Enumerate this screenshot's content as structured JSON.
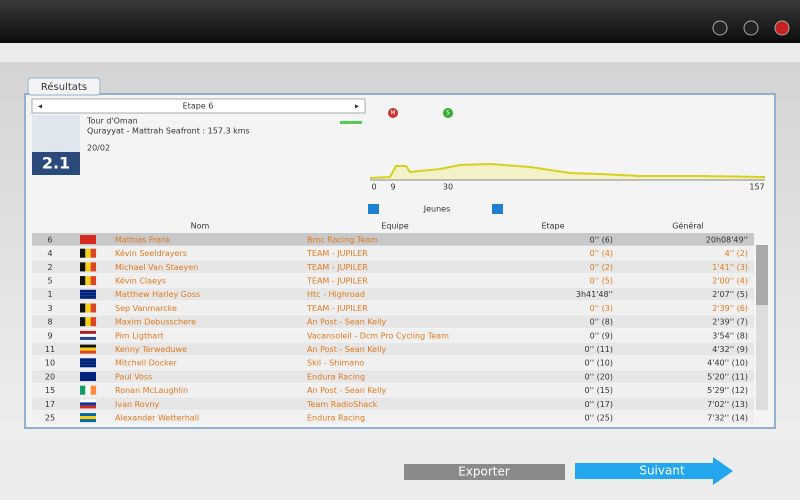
{
  "tab": "Résultats",
  "stage_selector": "Etape 6",
  "race": {
    "name": "Tour d'Oman",
    "route": "Qurayyat - Mattrah Seafront : 157.3 kms",
    "date": "20/02",
    "category": "2.1"
  },
  "profile": {
    "markers": [
      "M",
      "S"
    ],
    "km_labels": [
      "0",
      "9",
      "30",
      "157"
    ]
  },
  "classification": "Jeunes",
  "table": {
    "headers": [
      "Nom",
      "Equipe",
      "Etape",
      "Général"
    ],
    "rows": [
      [
        "6",
        "Mathias Frank",
        "Bmc Racing Team",
        "0'' (6)",
        "20h08'49''"
      ],
      [
        "4",
        "Kévin Seeldrayers",
        "TEAM - JUPILER",
        "0'' (4)",
        "4'' (2)"
      ],
      [
        "2",
        "Michael Van Staeyen",
        "TEAM - JUPILER",
        "0'' (2)",
        "1'41'' (3)"
      ],
      [
        "5",
        "Kévin Claeys",
        "TEAM - JUPILER",
        "0'' (5)",
        "2'00'' (4)"
      ],
      [
        "1",
        "Matthew Harley Goss",
        "Htc - Highroad",
        "3h41'48''",
        "2'07'' (5)"
      ],
      [
        "3",
        "Sep Vanmarcke",
        "TEAM - JUPILER",
        "0'' (3)",
        "2'39'' (6)"
      ],
      [
        "8",
        "Maxim Debusschere",
        "An Post - Sean Kelly",
        "0'' (8)",
        "2'39'' (7)"
      ],
      [
        "9",
        "Pim Ligthart",
        "Vacansoleil - Dcm Pro Cycling Team",
        "0'' (9)",
        "3'54'' (8)"
      ],
      [
        "11",
        "Kenny Terweduwe",
        "An Post - Sean Kelly",
        "0'' (11)",
        "4'32'' (9)"
      ],
      [
        "10",
        "Mitchell Docker",
        "Skil - Shimano",
        "0'' (10)",
        "4'40'' (10)"
      ],
      [
        "20",
        "Paul Voss",
        "Endura Racing",
        "0'' (20)",
        "5'20'' (11)"
      ],
      [
        "15",
        "Ronan McLaughlin",
        "An Post - Sean Kelly",
        "0'' (15)",
        "5'29'' (12)"
      ],
      [
        "17",
        "Ivan Rovny",
        "Team RadioShack",
        "0'' (17)",
        "7'02'' (13)"
      ],
      [
        "25",
        "Alexander Wetterhall",
        "Endura Racing",
        "0'' (25)",
        "7'32'' (14)"
      ]
    ]
  },
  "buttons": {
    "export": "Exporter",
    "next": "Suivant"
  }
}
